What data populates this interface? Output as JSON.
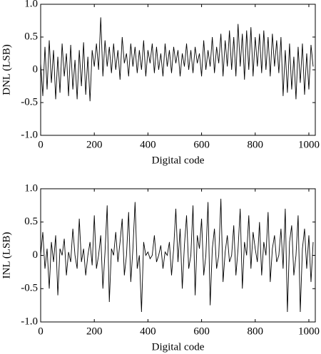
{
  "chart_data": [
    {
      "type": "line",
      "y_label": "DNL (LSB)",
      "x_label": "Digital code",
      "color": "#000000",
      "xlim": [
        0,
        1024
      ],
      "xticks": [
        0,
        200,
        400,
        600,
        800,
        1000
      ],
      "ylim": [
        -1,
        1
      ],
      "yticks": [
        {
          "value": -1,
          "label": "-1.0"
        },
        -0.5,
        0,
        0.5,
        {
          "value": 1,
          "label": "1.0"
        }
      ],
      "x": [
        0,
        8,
        16,
        24,
        32,
        40,
        48,
        56,
        64,
        72,
        80,
        88,
        96,
        104,
        112,
        120,
        128,
        136,
        144,
        152,
        160,
        168,
        176,
        184,
        192,
        200,
        208,
        216,
        224,
        232,
        240,
        248,
        256,
        264,
        272,
        280,
        288,
        296,
        304,
        312,
        320,
        328,
        336,
        344,
        352,
        360,
        368,
        376,
        384,
        392,
        400,
        408,
        416,
        424,
        432,
        440,
        448,
        456,
        464,
        472,
        480,
        488,
        496,
        504,
        512,
        520,
        528,
        536,
        544,
        552,
        560,
        568,
        576,
        584,
        592,
        600,
        608,
        616,
        624,
        632,
        640,
        648,
        656,
        664,
        672,
        680,
        688,
        696,
        704,
        712,
        720,
        728,
        736,
        744,
        752,
        760,
        768,
        776,
        784,
        792,
        800,
        808,
        816,
        824,
        832,
        840,
        848,
        856,
        864,
        872,
        880,
        888,
        896,
        904,
        912,
        920,
        928,
        936,
        944,
        952,
        960,
        968,
        976,
        984,
        992,
        1000,
        1008,
        1016
      ],
      "values": [
        0.1,
        -0.4,
        0.35,
        -0.3,
        0.45,
        -0.2,
        0.3,
        -0.45,
        0.2,
        -0.35,
        0.4,
        -0.1,
        0.25,
        -0.4,
        0.38,
        -0.3,
        0.15,
        -0.45,
        0.3,
        -0.25,
        0.42,
        -0.38,
        0.2,
        -0.48,
        0.3,
        0.05,
        0.4,
        0.0,
        0.8,
        -0.1,
        0.45,
        0.05,
        0.35,
        -0.05,
        0.4,
        0.0,
        0.3,
        -0.15,
        0.5,
        0.1,
        0.25,
        -0.1,
        0.4,
        0.05,
        0.35,
        -0.05,
        0.3,
        0.0,
        0.45,
        -0.1,
        0.3,
        0.1,
        0.4,
        -0.05,
        0.35,
        0.0,
        0.25,
        -0.1,
        0.4,
        0.05,
        0.3,
        -0.05,
        0.35,
        0.1,
        0.3,
        -0.1,
        0.25,
        0.05,
        0.4,
        0.0,
        0.3,
        -0.05,
        0.35,
        0.1,
        0.25,
        -0.1,
        0.45,
        0.0,
        0.3,
        0.05,
        0.5,
        -0.05,
        0.35,
        0.1,
        0.55,
        -0.1,
        0.45,
        0.05,
        0.6,
        0.0,
        0.5,
        -0.1,
        0.7,
        0.05,
        0.55,
        -0.15,
        0.6,
        0.0,
        0.65,
        -0.1,
        0.5,
        0.05,
        0.55,
        -0.05,
        0.6,
        0.0,
        0.5,
        -0.1,
        0.55,
        0.05,
        0.45,
        -0.05,
        0.5,
        -0.4,
        0.3,
        -0.35,
        0.4,
        -0.3,
        0.2,
        -0.45,
        0.35,
        -0.2,
        0.4,
        -0.38,
        0.25,
        -0.3,
        0.38,
        0.05
      ]
    },
    {
      "type": "line",
      "y_label": "INL (LSB)",
      "x_label": "Digital code",
      "color": "#000000",
      "xlim": [
        0,
        1024
      ],
      "xticks": [
        0,
        200,
        400,
        600,
        800,
        1000
      ],
      "ylim": [
        -1,
        1
      ],
      "yticks": [
        {
          "value": -1,
          "label": "-1.0"
        },
        -0.5,
        0,
        0.5,
        {
          "value": 1,
          "label": "1.0"
        }
      ],
      "x": [
        0,
        8,
        16,
        24,
        32,
        40,
        48,
        56,
        64,
        72,
        80,
        88,
        96,
        104,
        112,
        120,
        128,
        136,
        144,
        152,
        160,
        168,
        176,
        184,
        192,
        200,
        208,
        216,
        224,
        232,
        240,
        248,
        256,
        264,
        272,
        280,
        288,
        296,
        304,
        312,
        320,
        328,
        336,
        344,
        352,
        360,
        368,
        376,
        384,
        392,
        400,
        408,
        416,
        424,
        432,
        440,
        448,
        456,
        464,
        472,
        480,
        488,
        496,
        504,
        512,
        520,
        528,
        536,
        544,
        552,
        560,
        568,
        576,
        584,
        592,
        600,
        608,
        616,
        624,
        632,
        640,
        648,
        656,
        664,
        672,
        680,
        688,
        696,
        704,
        712,
        720,
        728,
        736,
        744,
        752,
        760,
        768,
        776,
        784,
        792,
        800,
        808,
        816,
        824,
        832,
        840,
        848,
        856,
        864,
        872,
        880,
        888,
        896,
        904,
        912,
        920,
        928,
        936,
        944,
        952,
        960,
        968,
        976,
        984,
        992,
        1000,
        1008,
        1016
      ],
      "values": [
        0.0,
        0.35,
        -0.2,
        0.1,
        -0.5,
        0.2,
        -0.1,
        0.3,
        -0.6,
        0.1,
        0.0,
        0.25,
        -0.3,
        0.05,
        -0.1,
        0.4,
        0.0,
        -0.2,
        0.55,
        -0.1,
        0.1,
        -0.3,
        0.0,
        0.2,
        -0.15,
        0.6,
        -0.2,
        0.0,
        0.3,
        -0.5,
        0.05,
        0.75,
        -0.7,
        0.1,
        0.0,
        0.35,
        -0.1,
        0.2,
        0.55,
        -0.3,
        0.0,
        0.65,
        -0.4,
        0.1,
        0.8,
        -0.2,
        0.0,
        -0.85,
        0.2,
        0.0,
        0.05,
        -0.05,
        0.0,
        0.3,
        -0.1,
        0.0,
        0.15,
        -0.2,
        0.05,
        0.0,
        0.2,
        -0.3,
        0.1,
        0.7,
        -0.1,
        0.4,
        -0.5,
        0.15,
        0.6,
        -0.2,
        0.0,
        0.75,
        -0.6,
        0.3,
        0.1,
        0.55,
        -0.3,
        0.0,
        0.8,
        -0.75,
        0.1,
        0.4,
        -0.2,
        0.0,
        0.85,
        -0.4,
        0.05,
        0.3,
        -0.1,
        0.0,
        0.45,
        -0.3,
        0.1,
        0.7,
        -0.5,
        0.2,
        0.0,
        0.6,
        -0.2,
        0.35,
        0.1,
        -0.1,
        0.5,
        -0.3,
        0.2,
        0.0,
        0.65,
        -0.4,
        0.1,
        0.3,
        -0.1,
        0.0,
        0.4,
        -0.2,
        0.7,
        -0.85,
        0.2,
        0.45,
        -0.3,
        0.0,
        0.6,
        -0.85,
        0.1,
        0.4,
        -0.2,
        0.3,
        -0.4,
        0.2
      ]
    }
  ]
}
